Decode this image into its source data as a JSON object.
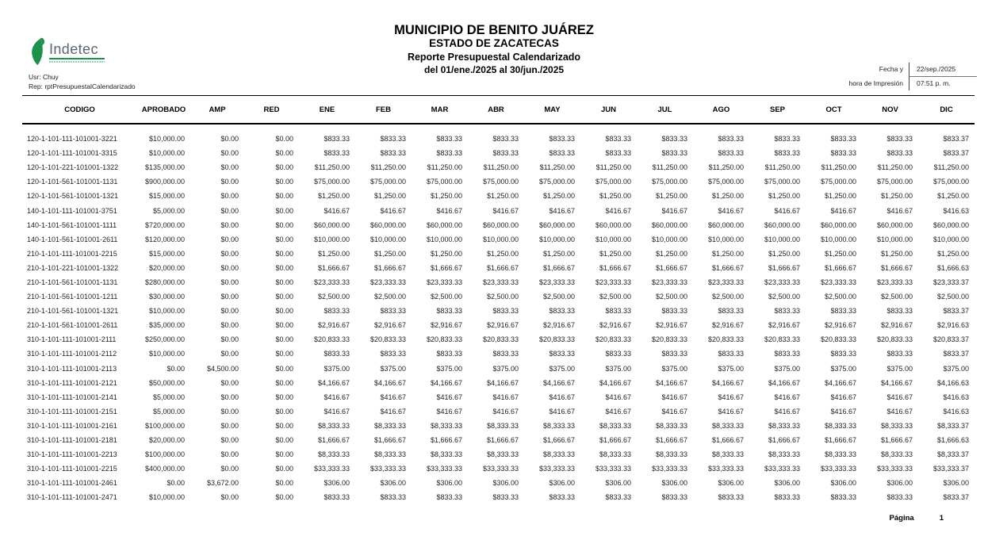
{
  "logo": {
    "text": "Indetec",
    "accent_color": "#1b9247",
    "text_color": "#5c6670"
  },
  "title": {
    "line1": "MUNICIPIO DE BENITO JUÁREZ",
    "line2": "ESTADO DE ZACATECAS",
    "line3": "Reporte Presupuestal Calendarizado",
    "line4": "del 01/ene./2025 al 30/jun./2025"
  },
  "meta": {
    "user": "Usr: Chuy",
    "report": "Rep: rptPresupuestalCalendarizado"
  },
  "print_info": {
    "label_line1": "Fecha y",
    "label_line2": "hora de Impresión",
    "date": "22/sep./2025",
    "time": "07:51 p. m."
  },
  "table": {
    "columns": [
      "CODIGO",
      "APROBADO",
      "AMP",
      "RED",
      "ENE",
      "FEB",
      "MAR",
      "ABR",
      "MAY",
      "JUN",
      "JUL",
      "AGO",
      "SEP",
      "OCT",
      "NOV",
      "DIC"
    ],
    "rows": [
      [
        "120-1-101-111-101001-3221",
        "$10,000.00",
        "$0.00",
        "$0.00",
        "$833.33",
        "$833.33",
        "$833.33",
        "$833.33",
        "$833.33",
        "$833.33",
        "$833.33",
        "$833.33",
        "$833.33",
        "$833.33",
        "$833.33",
        "$833.37"
      ],
      [
        "120-1-101-111-101001-3315",
        "$10,000.00",
        "$0.00",
        "$0.00",
        "$833.33",
        "$833.33",
        "$833.33",
        "$833.33",
        "$833.33",
        "$833.33",
        "$833.33",
        "$833.33",
        "$833.33",
        "$833.33",
        "$833.33",
        "$833.37"
      ],
      [
        "120-1-101-221-101001-1322",
        "$135,000.00",
        "$0.00",
        "$0.00",
        "$11,250.00",
        "$11,250.00",
        "$11,250.00",
        "$11,250.00",
        "$11,250.00",
        "$11,250.00",
        "$11,250.00",
        "$11,250.00",
        "$11,250.00",
        "$11,250.00",
        "$11,250.00",
        "$11,250.00"
      ],
      [
        "120-1-101-561-101001-1131",
        "$900,000.00",
        "$0.00",
        "$0.00",
        "$75,000.00",
        "$75,000.00",
        "$75,000.00",
        "$75,000.00",
        "$75,000.00",
        "$75,000.00",
        "$75,000.00",
        "$75,000.00",
        "$75,000.00",
        "$75,000.00",
        "$75,000.00",
        "$75,000.00"
      ],
      [
        "120-1-101-561-101001-1321",
        "$15,000.00",
        "$0.00",
        "$0.00",
        "$1,250.00",
        "$1,250.00",
        "$1,250.00",
        "$1,250.00",
        "$1,250.00",
        "$1,250.00",
        "$1,250.00",
        "$1,250.00",
        "$1,250.00",
        "$1,250.00",
        "$1,250.00",
        "$1,250.00"
      ],
      [
        "140-1-101-111-101001-3751",
        "$5,000.00",
        "$0.00",
        "$0.00",
        "$416.67",
        "$416.67",
        "$416.67",
        "$416.67",
        "$416.67",
        "$416.67",
        "$416.67",
        "$416.67",
        "$416.67",
        "$416.67",
        "$416.67",
        "$416.63"
      ],
      [
        "140-1-101-561-101001-1111",
        "$720,000.00",
        "$0.00",
        "$0.00",
        "$60,000.00",
        "$60,000.00",
        "$60,000.00",
        "$60,000.00",
        "$60,000.00",
        "$60,000.00",
        "$60,000.00",
        "$60,000.00",
        "$60,000.00",
        "$60,000.00",
        "$60,000.00",
        "$60,000.00"
      ],
      [
        "140-1-101-561-101001-2611",
        "$120,000.00",
        "$0.00",
        "$0.00",
        "$10,000.00",
        "$10,000.00",
        "$10,000.00",
        "$10,000.00",
        "$10,000.00",
        "$10,000.00",
        "$10,000.00",
        "$10,000.00",
        "$10,000.00",
        "$10,000.00",
        "$10,000.00",
        "$10,000.00"
      ],
      [
        "210-1-101-111-101001-2215",
        "$15,000.00",
        "$0.00",
        "$0.00",
        "$1,250.00",
        "$1,250.00",
        "$1,250.00",
        "$1,250.00",
        "$1,250.00",
        "$1,250.00",
        "$1,250.00",
        "$1,250.00",
        "$1,250.00",
        "$1,250.00",
        "$1,250.00",
        "$1,250.00"
      ],
      [
        "210-1-101-221-101001-1322",
        "$20,000.00",
        "$0.00",
        "$0.00",
        "$1,666.67",
        "$1,666.67",
        "$1,666.67",
        "$1,666.67",
        "$1,666.67",
        "$1,666.67",
        "$1,666.67",
        "$1,666.67",
        "$1,666.67",
        "$1,666.67",
        "$1,666.67",
        "$1,666.63"
      ],
      [
        "210-1-101-561-101001-1131",
        "$280,000.00",
        "$0.00",
        "$0.00",
        "$23,333.33",
        "$23,333.33",
        "$23,333.33",
        "$23,333.33",
        "$23,333.33",
        "$23,333.33",
        "$23,333.33",
        "$23,333.33",
        "$23,333.33",
        "$23,333.33",
        "$23,333.33",
        "$23,333.37"
      ],
      [
        "210-1-101-561-101001-1211",
        "$30,000.00",
        "$0.00",
        "$0.00",
        "$2,500.00",
        "$2,500.00",
        "$2,500.00",
        "$2,500.00",
        "$2,500.00",
        "$2,500.00",
        "$2,500.00",
        "$2,500.00",
        "$2,500.00",
        "$2,500.00",
        "$2,500.00",
        "$2,500.00"
      ],
      [
        "210-1-101-561-101001-1321",
        "$10,000.00",
        "$0.00",
        "$0.00",
        "$833.33",
        "$833.33",
        "$833.33",
        "$833.33",
        "$833.33",
        "$833.33",
        "$833.33",
        "$833.33",
        "$833.33",
        "$833.33",
        "$833.33",
        "$833.37"
      ],
      [
        "210-1-101-561-101001-2611",
        "$35,000.00",
        "$0.00",
        "$0.00",
        "$2,916.67",
        "$2,916.67",
        "$2,916.67",
        "$2,916.67",
        "$2,916.67",
        "$2,916.67",
        "$2,916.67",
        "$2,916.67",
        "$2,916.67",
        "$2,916.67",
        "$2,916.67",
        "$2,916.63"
      ],
      [
        "310-1-101-111-101001-2111",
        "$250,000.00",
        "$0.00",
        "$0.00",
        "$20,833.33",
        "$20,833.33",
        "$20,833.33",
        "$20,833.33",
        "$20,833.33",
        "$20,833.33",
        "$20,833.33",
        "$20,833.33",
        "$20,833.33",
        "$20,833.33",
        "$20,833.33",
        "$20,833.37"
      ],
      [
        "310-1-101-111-101001-2112",
        "$10,000.00",
        "$0.00",
        "$0.00",
        "$833.33",
        "$833.33",
        "$833.33",
        "$833.33",
        "$833.33",
        "$833.33",
        "$833.33",
        "$833.33",
        "$833.33",
        "$833.33",
        "$833.33",
        "$833.37"
      ],
      [
        "310-1-101-111-101001-2113",
        "$0.00",
        "$4,500.00",
        "$0.00",
        "$375.00",
        "$375.00",
        "$375.00",
        "$375.00",
        "$375.00",
        "$375.00",
        "$375.00",
        "$375.00",
        "$375.00",
        "$375.00",
        "$375.00",
        "$375.00"
      ],
      [
        "310-1-101-111-101001-2121",
        "$50,000.00",
        "$0.00",
        "$0.00",
        "$4,166.67",
        "$4,166.67",
        "$4,166.67",
        "$4,166.67",
        "$4,166.67",
        "$4,166.67",
        "$4,166.67",
        "$4,166.67",
        "$4,166.67",
        "$4,166.67",
        "$4,166.67",
        "$4,166.63"
      ],
      [
        "310-1-101-111-101001-2141",
        "$5,000.00",
        "$0.00",
        "$0.00",
        "$416.67",
        "$416.67",
        "$416.67",
        "$416.67",
        "$416.67",
        "$416.67",
        "$416.67",
        "$416.67",
        "$416.67",
        "$416.67",
        "$416.67",
        "$416.63"
      ],
      [
        "310-1-101-111-101001-2151",
        "$5,000.00",
        "$0.00",
        "$0.00",
        "$416.67",
        "$416.67",
        "$416.67",
        "$416.67",
        "$416.67",
        "$416.67",
        "$416.67",
        "$416.67",
        "$416.67",
        "$416.67",
        "$416.67",
        "$416.63"
      ],
      [
        "310-1-101-111-101001-2161",
        "$100,000.00",
        "$0.00",
        "$0.00",
        "$8,333.33",
        "$8,333.33",
        "$8,333.33",
        "$8,333.33",
        "$8,333.33",
        "$8,333.33",
        "$8,333.33",
        "$8,333.33",
        "$8,333.33",
        "$8,333.33",
        "$8,333.33",
        "$8,333.37"
      ],
      [
        "310-1-101-111-101001-2181",
        "$20,000.00",
        "$0.00",
        "$0.00",
        "$1,666.67",
        "$1,666.67",
        "$1,666.67",
        "$1,666.67",
        "$1,666.67",
        "$1,666.67",
        "$1,666.67",
        "$1,666.67",
        "$1,666.67",
        "$1,666.67",
        "$1,666.67",
        "$1,666.63"
      ],
      [
        "310-1-101-111-101001-2213",
        "$100,000.00",
        "$0.00",
        "$0.00",
        "$8,333.33",
        "$8,333.33",
        "$8,333.33",
        "$8,333.33",
        "$8,333.33",
        "$8,333.33",
        "$8,333.33",
        "$8,333.33",
        "$8,333.33",
        "$8,333.33",
        "$8,333.33",
        "$8,333.37"
      ],
      [
        "310-1-101-111-101001-2215",
        "$400,000.00",
        "$0.00",
        "$0.00",
        "$33,333.33",
        "$33,333.33",
        "$33,333.33",
        "$33,333.33",
        "$33,333.33",
        "$33,333.33",
        "$33,333.33",
        "$33,333.33",
        "$33,333.33",
        "$33,333.33",
        "$33,333.33",
        "$33,333.37"
      ],
      [
        "310-1-101-111-101001-2461",
        "$0.00",
        "$3,672.00",
        "$0.00",
        "$306.00",
        "$306.00",
        "$306.00",
        "$306.00",
        "$306.00",
        "$306.00",
        "$306.00",
        "$306.00",
        "$306.00",
        "$306.00",
        "$306.00",
        "$306.00"
      ],
      [
        "310-1-101-111-101001-2471",
        "$10,000.00",
        "$0.00",
        "$0.00",
        "$833.33",
        "$833.33",
        "$833.33",
        "$833.33",
        "$833.33",
        "$833.33",
        "$833.33",
        "$833.33",
        "$833.33",
        "$833.33",
        "$833.33",
        "$833.37"
      ]
    ]
  },
  "footer": {
    "page_label": "Página",
    "page_number": "1"
  }
}
